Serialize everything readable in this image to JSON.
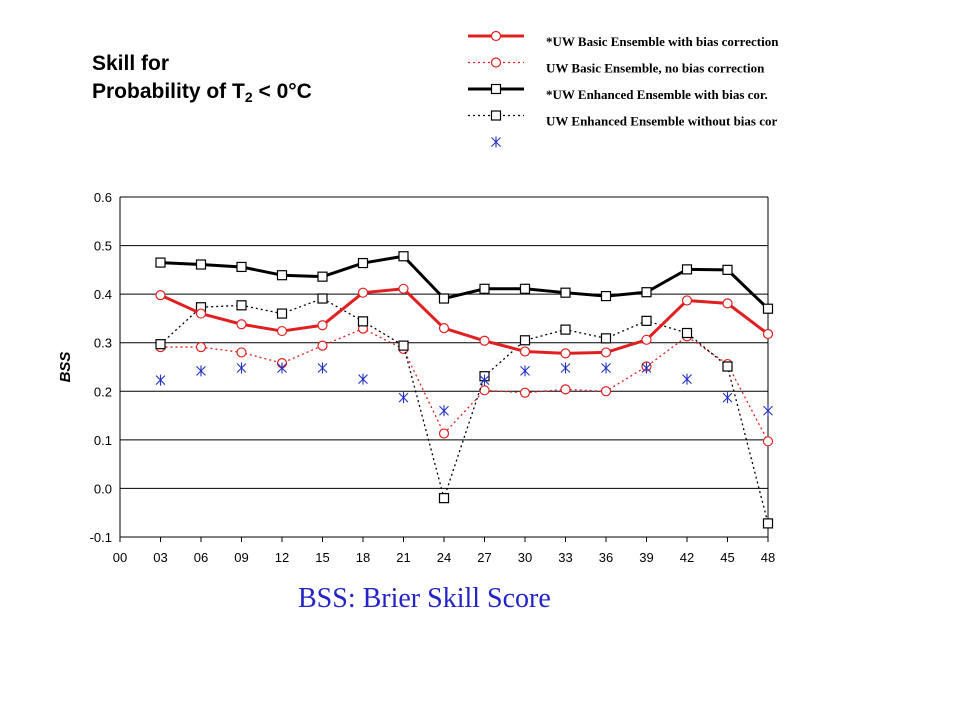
{
  "title": {
    "line1": "Skill for",
    "line2_prefix": "Probability of T",
    "line2_sub": "2",
    "line2_suffix": " < 0°C"
  },
  "caption": "BSS:  Brier Skill Score",
  "chart_data": {
    "type": "line",
    "ylabel": "BSS",
    "xlabel": "",
    "x": [
      "00",
      "03",
      "06",
      "09",
      "12",
      "15",
      "18",
      "21",
      "24",
      "27",
      "30",
      "33",
      "36",
      "39",
      "42",
      "45",
      "48"
    ],
    "ylim": [
      -0.1,
      0.6
    ],
    "yticks": [
      "0.6",
      "0.5",
      "0.4",
      "0.3",
      "0.2",
      "0.1",
      "0.0",
      "-0.1"
    ],
    "grid": "horizontal",
    "legend_position": "top-right",
    "series": [
      {
        "name": "*UW Basic Ensemble with bias correction",
        "color": "#e02020",
        "marker": "circle",
        "line": "solid-thick",
        "values": [
          null,
          0.398,
          0.36,
          0.338,
          0.324,
          0.336,
          0.403,
          0.411,
          0.33,
          0.304,
          0.282,
          0.278,
          0.28,
          0.306,
          0.387,
          0.381,
          0.318
        ]
      },
      {
        "name": "UW Basic Ensemble, no bias correction",
        "color": "#e02020",
        "marker": "circle",
        "line": "dotted",
        "values": [
          null,
          0.291,
          0.291,
          0.28,
          0.258,
          0.294,
          0.329,
          0.287,
          0.113,
          0.202,
          0.197,
          0.204,
          0.2,
          0.251,
          0.313,
          0.256,
          0.097
        ]
      },
      {
        "name": "*UW Enhanced Ensemble with bias cor.",
        "color": "#000000",
        "marker": "square",
        "line": "solid-thick",
        "values": [
          null,
          0.465,
          0.461,
          0.456,
          0.439,
          0.436,
          0.464,
          0.478,
          0.391,
          0.411,
          0.411,
          0.403,
          0.396,
          0.404,
          0.451,
          0.45,
          0.37
        ]
      },
      {
        "name": "UW Enhanced Ensemble without bias cor",
        "color": "#000000",
        "marker": "square",
        "line": "dotted",
        "values": [
          null,
          0.297,
          0.373,
          0.377,
          0.36,
          0.391,
          0.344,
          0.294,
          -0.02,
          0.231,
          0.305,
          0.327,
          0.309,
          0.345,
          0.32,
          0.251,
          -0.072
        ]
      },
      {
        "name": "",
        "color": "#2030c0",
        "marker": "asterisk",
        "line": "none",
        "values": [
          null,
          0.223,
          0.242,
          0.248,
          0.248,
          0.248,
          0.225,
          0.187,
          0.16,
          0.223,
          0.242,
          0.248,
          0.248,
          0.248,
          0.225,
          0.187,
          0.16
        ]
      }
    ]
  }
}
